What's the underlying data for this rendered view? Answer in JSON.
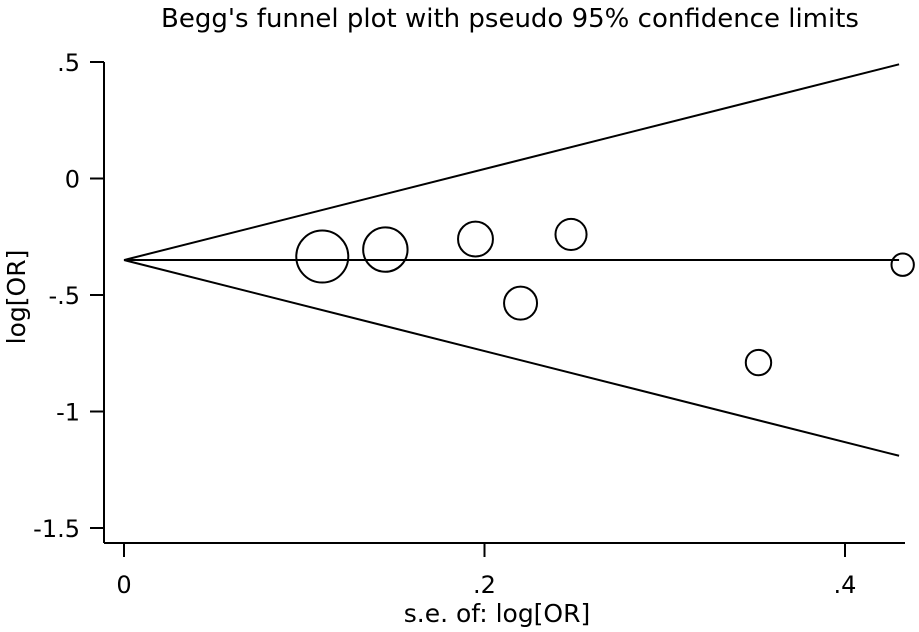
{
  "chart_data": {
    "type": "scatter",
    "title": "Begg's funnel plot with pseudo 95% confidence limits",
    "xlabel": "s.e. of: log[OR]",
    "ylabel": "log[OR]",
    "xlim": [
      0,
      0.43
    ],
    "ylim": [
      -1.5,
      0.5
    ],
    "x_ticks": [
      0,
      0.2,
      0.4
    ],
    "x_tick_labels": [
      "0",
      ".2",
      ".4"
    ],
    "y_ticks": [
      0.5,
      0,
      -0.5,
      -1,
      -1.5
    ],
    "y_tick_labels": [
      ".5",
      "0",
      "-.5",
      "-1",
      "-1.5"
    ],
    "pooled_estimate": -0.35,
    "confidence_limits": {
      "upper": [
        [
          0,
          -0.35
        ],
        [
          0.43,
          0.49
        ]
      ],
      "lower": [
        [
          0,
          -0.35
        ],
        [
          0.43,
          -1.19
        ]
      ]
    },
    "points": [
      {
        "x": 0.11,
        "y": -0.335,
        "weight": 1.0
      },
      {
        "x": 0.145,
        "y": -0.305,
        "weight": 0.8
      },
      {
        "x": 0.195,
        "y": -0.26,
        "weight": 0.55
      },
      {
        "x": 0.22,
        "y": -0.535,
        "weight": 0.5
      },
      {
        "x": 0.248,
        "y": -0.24,
        "weight": 0.45
      },
      {
        "x": 0.352,
        "y": -0.79,
        "weight": 0.3
      },
      {
        "x": 0.432,
        "y": -0.37,
        "weight": 0.22
      }
    ]
  }
}
